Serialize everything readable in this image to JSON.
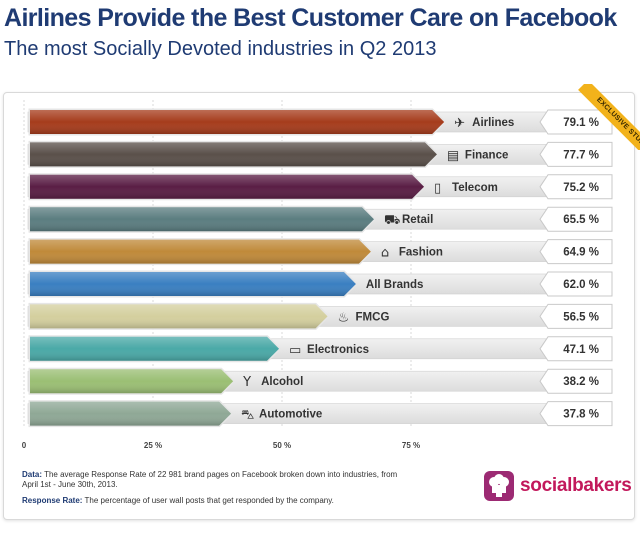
{
  "header": {
    "title": "Airlines Provide the Best Customer Care on Facebook",
    "subtitle": "The most Socially Devoted industries in Q2 2013"
  },
  "badge": {
    "label": "EXCLUSIVE STUDY"
  },
  "chart_data": {
    "type": "bar",
    "orientation": "horizontal",
    "title": "The most Socially Devoted industries in Q2 2013",
    "categories": [
      "Airlines",
      "Finance",
      "Telecom",
      "Retail",
      "Fashion",
      "All Brands",
      "FMCG",
      "Electronics",
      "Alcohol",
      "Automotive"
    ],
    "values": [
      79.1,
      77.7,
      75.2,
      65.5,
      64.9,
      62.0,
      56.5,
      47.1,
      38.2,
      37.8
    ],
    "value_labels": [
      "79.1 %",
      "77.7 %",
      "75.2 %",
      "65.5 %",
      "64.9 %",
      "62.0 %",
      "56.5 %",
      "47.1 %",
      "38.2 %",
      "37.8 %"
    ],
    "icons": [
      "airplane-icon",
      "banknote-icon",
      "mobile-phone-icon",
      "shopping-cart-icon",
      "handbag-icon",
      "",
      "household-goods-icon",
      "laptop-icon",
      "wine-glass-icon",
      "car-icon"
    ],
    "colors": [
      "#a63c1c",
      "#5a504a",
      "#5a1e45",
      "#5b7d80",
      "#c08a3a",
      "#3a7fc1",
      "#d4cf9e",
      "#4aa9a7",
      "#9bbf74",
      "#8fa896"
    ],
    "xlim": [
      0,
      100
    ],
    "xticks": [
      0,
      25,
      50,
      75
    ],
    "xtick_labels": [
      "0",
      "25 %",
      "50 %",
      "75 %"
    ],
    "grid": true,
    "legend": "none"
  },
  "footnotes": {
    "data_label": "Data:",
    "data_text": "The average Response Rate of 22 981 brand pages on Facebook broken down into industries, from April 1st - June 30th, 2013.",
    "rr_label": "Response Rate:",
    "rr_text": "The percentage of user wall posts that get responded by the company."
  },
  "brand": {
    "name": "socialbakers"
  }
}
